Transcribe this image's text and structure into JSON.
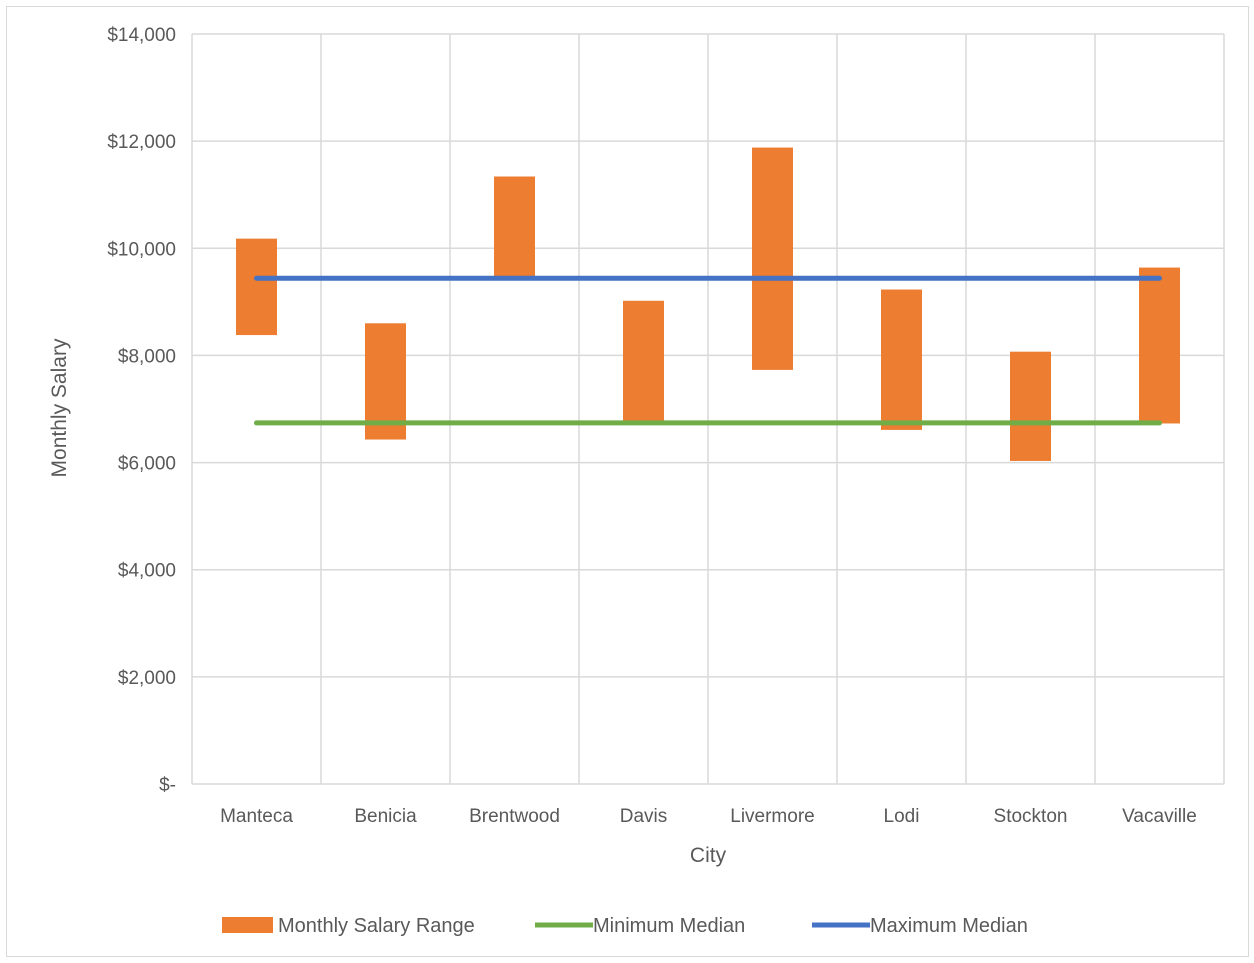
{
  "chart_data": {
    "type": "bar",
    "subtype": "floating-range-with-reference-lines",
    "title": "",
    "xlabel": "City",
    "ylabel": "Monthly Salary",
    "categories": [
      "Manteca",
      "Benicia",
      "Brentwood",
      "Davis",
      "Livermore",
      "Lodi",
      "Stockton",
      "Vacaville"
    ],
    "ylim": [
      0,
      14000
    ],
    "yticks": [
      0,
      2000,
      4000,
      6000,
      8000,
      10000,
      12000,
      14000
    ],
    "ytick_labels": [
      "$-",
      "$2,000",
      "$4,000",
      "$6,000",
      "$8,000",
      "$10,000",
      "$12,000",
      "$14,000"
    ],
    "grid": true,
    "legend_position": "bottom",
    "series": [
      {
        "name": "Monthly Salary Range",
        "kind": "range-bar",
        "color": "#ED7D31",
        "low": [
          8380,
          6430,
          9430,
          6750,
          7730,
          6610,
          6030,
          6730
        ],
        "high": [
          10180,
          8600,
          11340,
          9020,
          11880,
          9230,
          8070,
          9640
        ]
      },
      {
        "name": "Minimum Median",
        "kind": "line",
        "color": "#70AD47",
        "value": 6740
      },
      {
        "name": "Maximum Median",
        "kind": "line",
        "color": "#4472C4",
        "value": 9440
      }
    ]
  }
}
